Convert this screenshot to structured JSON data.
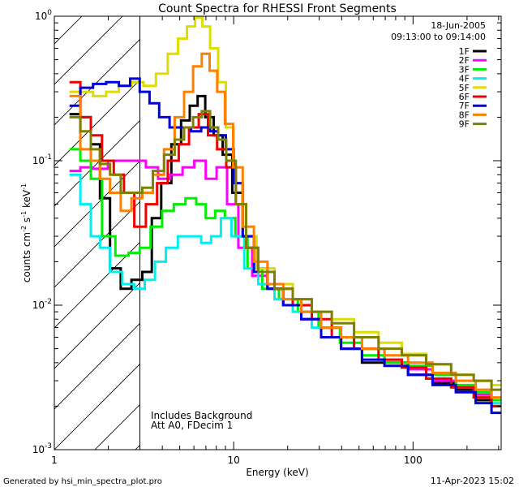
{
  "chart_data": {
    "type": "line",
    "title": "Count Spectra for RHESSI Front Segments",
    "xlabel": "Energy (keV)",
    "ylabel_parts": [
      "counts cm",
      "-2",
      " s",
      "-1",
      " keV",
      "-1"
    ],
    "xscale": "log",
    "yscale": "log",
    "xlim": [
      1.0,
      310.0
    ],
    "ylim": [
      0.001,
      1.0
    ],
    "x_ticks": [
      {
        "value": 1,
        "label": "1"
      },
      {
        "value": 10,
        "label": "10"
      },
      {
        "value": 100,
        "label": "100"
      }
    ],
    "y_ticks": [
      {
        "value": 1.0,
        "mantissa": "10",
        "exponent": "0"
      },
      {
        "value": 0.1,
        "mantissa": "10",
        "exponent": "-1"
      },
      {
        "value": 0.01,
        "mantissa": "10",
        "exponent": "-2"
      },
      {
        "value": 0.001,
        "mantissa": "10",
        "exponent": "-3"
      }
    ],
    "shaded_region": {
      "x_from": 1.0,
      "x_to": 3.0,
      "pattern": "diagonal-hatch"
    },
    "date": "18-Jun-2005",
    "time_range": "09:13:00 to 09:14:00",
    "legend_position": "top-right",
    "annotations": [
      "Includes Background",
      "Att A0, FDecim 1"
    ],
    "series": [
      {
        "name": "1F",
        "color": "#000000",
        "points": [
          [
            1.3,
            0.21
          ],
          [
            1.5,
            0.2
          ],
          [
            1.7,
            0.13
          ],
          [
            1.9,
            0.055
          ],
          [
            2.2,
            0.018
          ],
          [
            2.5,
            0.013
          ],
          [
            2.9,
            0.015
          ],
          [
            3.3,
            0.017
          ],
          [
            3.7,
            0.04
          ],
          [
            4.2,
            0.07
          ],
          [
            4.8,
            0.13
          ],
          [
            5.4,
            0.19
          ],
          [
            6.0,
            0.24
          ],
          [
            6.6,
            0.28
          ],
          [
            7.3,
            0.2
          ],
          [
            8.2,
            0.15
          ],
          [
            9.2,
            0.11
          ],
          [
            10.5,
            0.06
          ],
          [
            12,
            0.03
          ],
          [
            14,
            0.018
          ],
          [
            17,
            0.013
          ],
          [
            21,
            0.01
          ],
          [
            27,
            0.008
          ],
          [
            35,
            0.006
          ],
          [
            45,
            0.005
          ],
          [
            60,
            0.004
          ],
          [
            80,
            0.004
          ],
          [
            110,
            0.0033
          ],
          [
            150,
            0.0029
          ],
          [
            200,
            0.0026
          ],
          [
            250,
            0.0022
          ],
          [
            300,
            0.002
          ]
        ]
      },
      {
        "name": "2F",
        "color": "#ff00ff",
        "points": [
          [
            1.3,
            0.085
          ],
          [
            1.5,
            0.09
          ],
          [
            1.8,
            0.088
          ],
          [
            2.2,
            0.1
          ],
          [
            2.6,
            0.1
          ],
          [
            3.0,
            0.1
          ],
          [
            3.5,
            0.09
          ],
          [
            4.1,
            0.075
          ],
          [
            4.8,
            0.08
          ],
          [
            5.6,
            0.09
          ],
          [
            6.5,
            0.1
          ],
          [
            7.5,
            0.075
          ],
          [
            8.6,
            0.09
          ],
          [
            9.8,
            0.05
          ],
          [
            11.5,
            0.025
          ],
          [
            14,
            0.016
          ],
          [
            17,
            0.013
          ],
          [
            21,
            0.01
          ],
          [
            27,
            0.008
          ],
          [
            35,
            0.007
          ],
          [
            45,
            0.005
          ],
          [
            60,
            0.005
          ],
          [
            80,
            0.004
          ],
          [
            110,
            0.0036
          ],
          [
            150,
            0.003
          ],
          [
            200,
            0.0027
          ],
          [
            250,
            0.0024
          ],
          [
            300,
            0.0022
          ]
        ]
      },
      {
        "name": "3F",
        "color": "#00ee00",
        "points": [
          [
            1.3,
            0.12
          ],
          [
            1.5,
            0.1
          ],
          [
            1.7,
            0.075
          ],
          [
            2.0,
            0.03
          ],
          [
            2.4,
            0.022
          ],
          [
            2.8,
            0.023
          ],
          [
            3.2,
            0.025
          ],
          [
            3.7,
            0.035
          ],
          [
            4.3,
            0.045
          ],
          [
            5.0,
            0.05
          ],
          [
            5.8,
            0.055
          ],
          [
            6.6,
            0.05
          ],
          [
            7.4,
            0.04
          ],
          [
            8.4,
            0.045
          ],
          [
            9.5,
            0.04
          ],
          [
            11,
            0.03
          ],
          [
            13,
            0.018
          ],
          [
            16,
            0.013
          ],
          [
            20,
            0.011
          ],
          [
            26,
            0.009
          ],
          [
            34,
            0.007
          ],
          [
            45,
            0.0055
          ],
          [
            60,
            0.0045
          ],
          [
            80,
            0.004
          ],
          [
            110,
            0.0038
          ],
          [
            150,
            0.0033
          ],
          [
            200,
            0.0028
          ],
          [
            250,
            0.0025
          ],
          [
            300,
            0.0022
          ]
        ]
      },
      {
        "name": "4F",
        "color": "#00eeee",
        "points": [
          [
            1.3,
            0.08
          ],
          [
            1.5,
            0.05
          ],
          [
            1.7,
            0.03
          ],
          [
            1.9,
            0.025
          ],
          [
            2.2,
            0.017
          ],
          [
            2.6,
            0.014
          ],
          [
            3.0,
            0.013
          ],
          [
            3.4,
            0.015
          ],
          [
            3.9,
            0.02
          ],
          [
            4.5,
            0.025
          ],
          [
            5.3,
            0.03
          ],
          [
            6.2,
            0.03
          ],
          [
            7.0,
            0.027
          ],
          [
            8.0,
            0.03
          ],
          [
            9.0,
            0.04
          ],
          [
            10.5,
            0.03
          ],
          [
            12.5,
            0.018
          ],
          [
            15,
            0.014
          ],
          [
            19,
            0.011
          ],
          [
            24,
            0.009
          ],
          [
            31,
            0.007
          ],
          [
            40,
            0.006
          ],
          [
            55,
            0.005
          ],
          [
            75,
            0.0042
          ],
          [
            100,
            0.0037
          ],
          [
            140,
            0.0031
          ],
          [
            190,
            0.0027
          ],
          [
            250,
            0.0023
          ],
          [
            300,
            0.0021
          ]
        ]
      },
      {
        "name": "5F",
        "color": "#dddd00",
        "points": [
          [
            1.3,
            0.3
          ],
          [
            1.5,
            0.3
          ],
          [
            1.8,
            0.28
          ],
          [
            2.1,
            0.3
          ],
          [
            2.5,
            0.33
          ],
          [
            2.9,
            0.35
          ],
          [
            3.4,
            0.33
          ],
          [
            4.0,
            0.4
          ],
          [
            4.6,
            0.55
          ],
          [
            5.2,
            0.7
          ],
          [
            5.8,
            0.85
          ],
          [
            6.4,
            0.98
          ],
          [
            7.0,
            0.85
          ],
          [
            7.8,
            0.6
          ],
          [
            8.6,
            0.35
          ],
          [
            9.5,
            0.17
          ],
          [
            10.5,
            0.07
          ],
          [
            12,
            0.03
          ],
          [
            15,
            0.018
          ],
          [
            19,
            0.014
          ],
          [
            24,
            0.011
          ],
          [
            31,
            0.009
          ],
          [
            40,
            0.008
          ],
          [
            55,
            0.0065
          ],
          [
            75,
            0.0055
          ],
          [
            100,
            0.0046
          ],
          [
            140,
            0.0039
          ],
          [
            190,
            0.0033
          ],
          [
            250,
            0.003
          ],
          [
            300,
            0.0028
          ]
        ]
      },
      {
        "name": "6F",
        "color": "#ee0000",
        "points": [
          [
            1.3,
            0.35
          ],
          [
            1.5,
            0.2
          ],
          [
            1.7,
            0.15
          ],
          [
            2.0,
            0.1
          ],
          [
            2.3,
            0.08
          ],
          [
            2.6,
            0.06
          ],
          [
            3.0,
            0.035
          ],
          [
            3.5,
            0.05
          ],
          [
            4.0,
            0.07
          ],
          [
            4.6,
            0.1
          ],
          [
            5.3,
            0.13
          ],
          [
            6.0,
            0.17
          ],
          [
            6.8,
            0.21
          ],
          [
            7.6,
            0.15
          ],
          [
            8.6,
            0.12
          ],
          [
            9.6,
            0.09
          ],
          [
            11,
            0.05
          ],
          [
            12.5,
            0.025
          ],
          [
            15,
            0.017
          ],
          [
            19,
            0.013
          ],
          [
            24,
            0.01
          ],
          [
            31,
            0.008
          ],
          [
            40,
            0.006
          ],
          [
            55,
            0.005
          ],
          [
            75,
            0.0042
          ],
          [
            100,
            0.0037
          ],
          [
            140,
            0.0031
          ],
          [
            190,
            0.0027
          ],
          [
            250,
            0.0023
          ],
          [
            300,
            0.002
          ]
        ]
      },
      {
        "name": "7F",
        "color": "#0000dd",
        "points": [
          [
            1.3,
            0.24
          ],
          [
            1.5,
            0.32
          ],
          [
            1.8,
            0.34
          ],
          [
            2.1,
            0.35
          ],
          [
            2.5,
            0.33
          ],
          [
            2.8,
            0.37
          ],
          [
            3.2,
            0.3
          ],
          [
            3.6,
            0.25
          ],
          [
            4.1,
            0.2
          ],
          [
            4.7,
            0.17
          ],
          [
            5.4,
            0.17
          ],
          [
            6.2,
            0.16
          ],
          [
            7.0,
            0.17
          ],
          [
            7.8,
            0.16
          ],
          [
            8.6,
            0.15
          ],
          [
            9.5,
            0.12
          ],
          [
            10.5,
            0.07
          ],
          [
            12,
            0.03
          ],
          [
            14,
            0.017
          ],
          [
            17,
            0.013
          ],
          [
            21,
            0.01
          ],
          [
            27,
            0.008
          ],
          [
            35,
            0.006
          ],
          [
            45,
            0.005
          ],
          [
            60,
            0.0042
          ],
          [
            80,
            0.0038
          ],
          [
            110,
            0.0033
          ],
          [
            150,
            0.0028
          ],
          [
            200,
            0.0025
          ],
          [
            250,
            0.0021
          ],
          [
            300,
            0.0018
          ]
        ]
      },
      {
        "name": "8F",
        "color": "#ff8000",
        "points": [
          [
            1.3,
            0.28
          ],
          [
            1.5,
            0.12
          ],
          [
            1.7,
            0.1
          ],
          [
            1.9,
            0.075
          ],
          [
            2.2,
            0.06
          ],
          [
            2.5,
            0.045
          ],
          [
            2.9,
            0.055
          ],
          [
            3.3,
            0.06
          ],
          [
            3.8,
            0.08
          ],
          [
            4.4,
            0.12
          ],
          [
            5.0,
            0.2
          ],
          [
            5.6,
            0.3
          ],
          [
            6.3,
            0.45
          ],
          [
            7.0,
            0.55
          ],
          [
            7.7,
            0.42
          ],
          [
            8.5,
            0.3
          ],
          [
            9.4,
            0.18
          ],
          [
            10.5,
            0.09
          ],
          [
            12,
            0.035
          ],
          [
            14,
            0.02
          ],
          [
            17,
            0.014
          ],
          [
            21,
            0.011
          ],
          [
            27,
            0.009
          ],
          [
            35,
            0.007
          ],
          [
            45,
            0.006
          ],
          [
            60,
            0.005
          ],
          [
            80,
            0.0045
          ],
          [
            110,
            0.004
          ],
          [
            150,
            0.0034
          ],
          [
            200,
            0.003
          ],
          [
            250,
            0.0026
          ],
          [
            300,
            0.0023
          ]
        ]
      },
      {
        "name": "9F",
        "color": "#808000",
        "points": [
          [
            1.3,
            0.2
          ],
          [
            1.5,
            0.16
          ],
          [
            1.7,
            0.12
          ],
          [
            1.9,
            0.095
          ],
          [
            2.2,
            0.08
          ],
          [
            2.5,
            0.06
          ],
          [
            2.9,
            0.06
          ],
          [
            3.3,
            0.065
          ],
          [
            3.8,
            0.085
          ],
          [
            4.4,
            0.11
          ],
          [
            5.0,
            0.14
          ],
          [
            5.6,
            0.17
          ],
          [
            6.3,
            0.2
          ],
          [
            7.0,
            0.22
          ],
          [
            7.8,
            0.17
          ],
          [
            8.6,
            0.14
          ],
          [
            9.6,
            0.1
          ],
          [
            11,
            0.05
          ],
          [
            12.5,
            0.025
          ],
          [
            15,
            0.017
          ],
          [
            19,
            0.013
          ],
          [
            24,
            0.011
          ],
          [
            31,
            0.009
          ],
          [
            40,
            0.0075
          ],
          [
            55,
            0.006
          ],
          [
            75,
            0.005
          ],
          [
            100,
            0.0045
          ],
          [
            140,
            0.0039
          ],
          [
            190,
            0.0033
          ],
          [
            250,
            0.003
          ],
          [
            300,
            0.0026
          ]
        ]
      }
    ]
  },
  "footer": {
    "generated_by": "Generated by hsi_min_spectra_plot.pro",
    "timestamp": "11-Apr-2023 15:02"
  }
}
